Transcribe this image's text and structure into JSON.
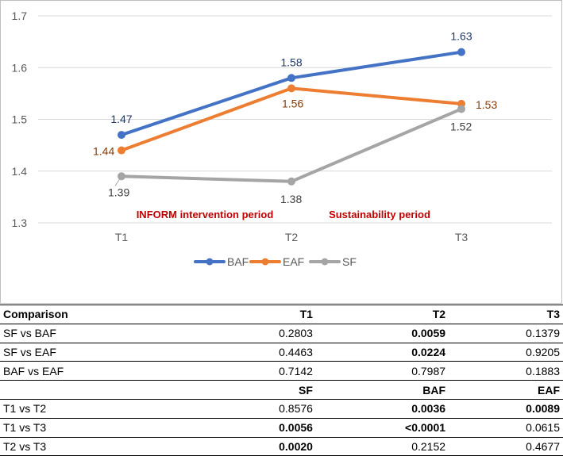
{
  "chart_data": {
    "type": "line",
    "categories": [
      "T1",
      "T2",
      "T3"
    ],
    "ylim": [
      1.3,
      1.7
    ],
    "yticks": [
      "1.3",
      "1.4",
      "1.5",
      "1.6",
      "1.7"
    ],
    "grid": true,
    "legend": "bottom-center",
    "series": [
      {
        "name": "BAF",
        "color": "#4472c4",
        "label_color": "#203864",
        "values": [
          1.47,
          1.58,
          1.63
        ],
        "labels": [
          "1.47",
          "1.58",
          "1.63"
        ]
      },
      {
        "name": "EAF",
        "color": "#ed7d31",
        "label_color": "#843c0c",
        "values": [
          1.44,
          1.56,
          1.53
        ],
        "labels": [
          "1.44",
          "1.56",
          "1.53"
        ]
      },
      {
        "name": "SF",
        "color": "#a5a5a5",
        "label_color": "#404040",
        "values": [
          1.39,
          1.38,
          1.52
        ],
        "labels": [
          "1.39",
          "1.38",
          "1.52"
        ]
      }
    ],
    "annotations": [
      "INFORM intervention period",
      "Sustainability period"
    ],
    "annotation_color": "#c00000"
  },
  "table": {
    "header1": [
      "Comparison",
      "T1",
      "T2",
      "T3"
    ],
    "rows1": [
      {
        "cells": [
          "SF vs BAF",
          "0.2803",
          "0.0059",
          "0.1379"
        ],
        "bold": [
          false,
          false,
          true,
          false
        ]
      },
      {
        "cells": [
          "SF vs EAF",
          "0.4463",
          "0.0224",
          "0.9205"
        ],
        "bold": [
          false,
          false,
          true,
          false
        ]
      },
      {
        "cells": [
          "BAF vs EAF",
          "0.7142",
          "0.7987",
          "0.1883"
        ],
        "bold": [
          false,
          false,
          false,
          false
        ]
      }
    ],
    "header2": [
      "",
      "SF",
      "BAF",
      "EAF"
    ],
    "rows2": [
      {
        "cells": [
          "T1 vs T2",
          "0.8576",
          "0.0036",
          "0.0089"
        ],
        "bold": [
          false,
          false,
          true,
          true
        ]
      },
      {
        "cells": [
          "T1 vs T3",
          "0.0056",
          "<0.0001",
          "0.0615"
        ],
        "bold": [
          false,
          true,
          true,
          false
        ]
      },
      {
        "cells": [
          "T2 vs T3",
          "0.0020",
          "0.2152",
          "0.4677"
        ],
        "bold": [
          false,
          true,
          false,
          false
        ]
      }
    ]
  }
}
